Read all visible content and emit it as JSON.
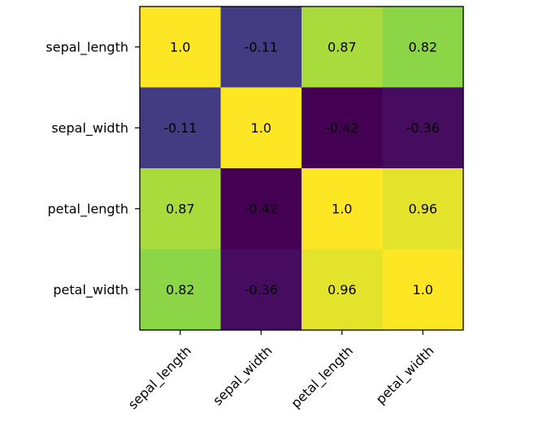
{
  "chart_data": {
    "type": "heatmap",
    "title": "",
    "xlabel": "",
    "ylabel": "",
    "row_labels": [
      "sepal_length",
      "sepal_width",
      "petal_length",
      "petal_width"
    ],
    "col_labels": [
      "sepal_length",
      "sepal_width",
      "petal_length",
      "petal_width"
    ],
    "values": [
      [
        1.0,
        -0.11,
        0.87,
        0.82
      ],
      [
        -0.11,
        1.0,
        -0.42,
        -0.36
      ],
      [
        0.87,
        -0.42,
        1.0,
        0.96
      ],
      [
        0.82,
        -0.36,
        0.96,
        1.0
      ]
    ],
    "cell_text": [
      [
        "1.0",
        "-0.11",
        "0.87",
        "0.82"
      ],
      [
        "-0.11",
        "1.0",
        "-0.42",
        "-0.36"
      ],
      [
        "0.87",
        "-0.42",
        "1.0",
        "0.96"
      ],
      [
        "0.82",
        "-0.36",
        "0.96",
        "1.0"
      ]
    ],
    "colormap": "viridis",
    "color_range": [
      -0.42,
      1.0
    ],
    "colorbar": false
  }
}
